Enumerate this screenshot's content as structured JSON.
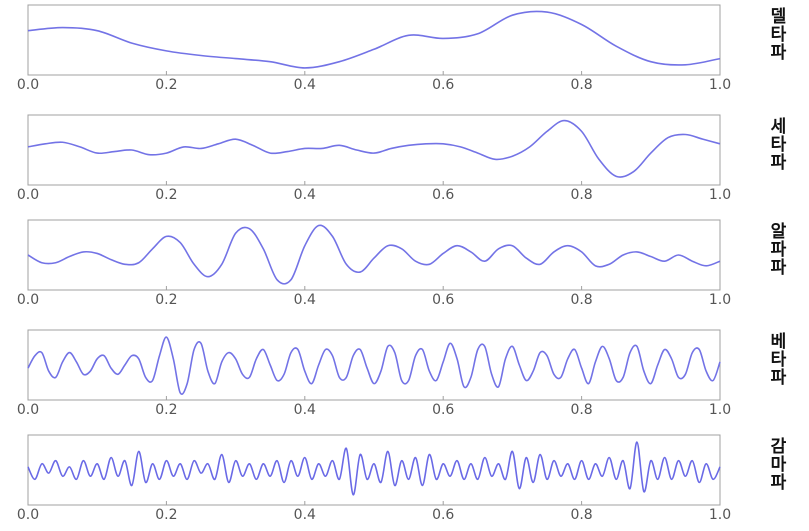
{
  "chart_data": [
    {
      "type": "line",
      "title": "델타파",
      "color": "#7373e6",
      "ylim": [
        -1,
        1
      ],
      "x": [
        0,
        0.05,
        0.1,
        0.15,
        0.2,
        0.25,
        0.3,
        0.35,
        0.4,
        0.45,
        0.5,
        0.55,
        0.6,
        0.65,
        0.7,
        0.75,
        0.8,
        0.85,
        0.9,
        0.95,
        1
      ],
      "values": [
        0.3,
        0.4,
        0.3,
        -0.1,
        -0.35,
        -0.5,
        -0.6,
        -0.7,
        -0.9,
        -0.7,
        -0.3,
        0.15,
        0.05,
        0.2,
        0.8,
        0.9,
        0.5,
        -0.2,
        -0.7,
        -0.8,
        -0.6
      ],
      "xlim": [
        0,
        1
      ],
      "xticks": [
        {
          "value": 0,
          "label": "0.0"
        },
        0.2,
        0.4,
        0.6,
        0.8,
        {
          "value": 1,
          "label": "1.0"
        }
      ]
    },
    {
      "type": "line",
      "title": "세타파",
      "color": "#7373e6",
      "ylim": [
        -1,
        1
      ],
      "x": [
        0,
        0.025,
        0.05,
        0.075,
        0.1,
        0.125,
        0.15,
        0.175,
        0.2,
        0.225,
        0.25,
        0.275,
        0.3,
        0.325,
        0.35,
        0.375,
        0.4,
        0.425,
        0.45,
        0.475,
        0.5,
        0.525,
        0.55,
        0.575,
        0.6,
        0.625,
        0.65,
        0.675,
        0.7,
        0.725,
        0.75,
        0.775,
        0.8,
        0.825,
        0.85,
        0.875,
        0.9,
        0.925,
        0.95,
        0.975,
        1
      ],
      "values": [
        0.1,
        0.2,
        0.25,
        0.1,
        -0.1,
        -0.05,
        0,
        -0.15,
        -0.1,
        0.1,
        0.05,
        0.2,
        0.35,
        0.15,
        -0.1,
        -0.05,
        0.05,
        0.05,
        0.15,
        0,
        -0.1,
        0.05,
        0.15,
        0.2,
        0.2,
        0.1,
        -0.1,
        -0.3,
        -0.2,
        0.1,
        0.6,
        0.95,
        0.6,
        -0.3,
        -0.85,
        -0.7,
        -0.1,
        0.4,
        0.5,
        0.35,
        0.2
      ],
      "xlim": [
        0,
        1
      ],
      "xticks": [
        {
          "value": 0,
          "label": "0.0"
        },
        0.2,
        0.4,
        0.6,
        0.8,
        {
          "value": 1,
          "label": "1.0"
        }
      ]
    },
    {
      "type": "line",
      "title": "알파파",
      "color": "#7373e6",
      "ylim": [
        -1,
        1
      ],
      "x": [
        0,
        0.02,
        0.04,
        0.06,
        0.08,
        0.1,
        0.12,
        0.14,
        0.16,
        0.18,
        0.2,
        0.22,
        0.24,
        0.26,
        0.28,
        0.3,
        0.32,
        0.34,
        0.36,
        0.38,
        0.4,
        0.42,
        0.44,
        0.46,
        0.48,
        0.5,
        0.52,
        0.54,
        0.56,
        0.58,
        0.6,
        0.62,
        0.64,
        0.66,
        0.68,
        0.7,
        0.72,
        0.74,
        0.76,
        0.78,
        0.8,
        0.82,
        0.84,
        0.86,
        0.88,
        0.9,
        0.92,
        0.94,
        0.96,
        0.98,
        1
      ],
      "values": [
        0,
        -0.25,
        -0.25,
        -0.05,
        0.1,
        0.05,
        -0.15,
        -0.3,
        -0.25,
        0.2,
        0.6,
        0.4,
        -0.3,
        -0.7,
        -0.3,
        0.7,
        0.85,
        0.2,
        -0.8,
        -0.8,
        0.3,
        0.95,
        0.6,
        -0.3,
        -0.55,
        -0.1,
        0.3,
        0.2,
        -0.2,
        -0.3,
        0.05,
        0.3,
        0.1,
        -0.2,
        0.2,
        0.3,
        -0.1,
        -0.3,
        0.1,
        0.3,
        0.1,
        -0.35,
        -0.3,
        0,
        0.1,
        -0.05,
        -0.2,
        0,
        -0.2,
        -0.35,
        -0.2
      ],
      "xlim": [
        0,
        1
      ],
      "xticks": [
        {
          "value": 0,
          "label": "0.0"
        },
        0.2,
        0.4,
        0.6,
        0.8,
        {
          "value": 1,
          "label": "1.0"
        }
      ]
    },
    {
      "type": "line",
      "title": "베타파",
      "color": "#7373e6",
      "ylim": [
        -1,
        1
      ],
      "x": [
        0,
        0.01,
        0.02,
        0.03,
        0.04,
        0.05,
        0.06,
        0.07,
        0.08,
        0.09,
        0.1,
        0.11,
        0.12,
        0.13,
        0.14,
        0.15,
        0.16,
        0.17,
        0.18,
        0.19,
        0.2,
        0.21,
        0.22,
        0.23,
        0.24,
        0.25,
        0.26,
        0.27,
        0.28,
        0.29,
        0.3,
        0.31,
        0.32,
        0.33,
        0.34,
        0.35,
        0.36,
        0.37,
        0.38,
        0.39,
        0.4,
        0.41,
        0.42,
        0.43,
        0.44,
        0.45,
        0.46,
        0.47,
        0.48,
        0.49,
        0.5,
        0.51,
        0.52,
        0.53,
        0.54,
        0.55,
        0.56,
        0.57,
        0.58,
        0.59,
        0.6,
        0.61,
        0.62,
        0.63,
        0.64,
        0.65,
        0.66,
        0.67,
        0.68,
        0.69,
        0.7,
        0.71,
        0.72,
        0.73,
        0.74,
        0.75,
        0.76,
        0.77,
        0.78,
        0.79,
        0.8,
        0.81,
        0.82,
        0.83,
        0.84,
        0.85,
        0.86,
        0.87,
        0.88,
        0.89,
        0.9,
        0.91,
        0.92,
        0.93,
        0.94,
        0.95,
        0.96,
        0.97,
        0.98,
        0.99,
        1
      ],
      "values": [
        -0.1,
        0.3,
        0.4,
        -0.2,
        -0.4,
        0.1,
        0.4,
        0.1,
        -0.3,
        -0.2,
        0.2,
        0.3,
        -0.1,
        -0.3,
        0,
        0.3,
        0.2,
        -0.4,
        -0.5,
        0.3,
        0.9,
        0.2,
        -0.9,
        -0.6,
        0.5,
        0.7,
        -0.2,
        -0.6,
        0.1,
        0.4,
        0.2,
        -0.3,
        -0.4,
        0.2,
        0.5,
        0,
        -0.5,
        -0.3,
        0.4,
        0.5,
        -0.2,
        -0.6,
        0,
        0.5,
        0.3,
        -0.4,
        -0.4,
        0.3,
        0.5,
        -0.1,
        -0.6,
        -0.2,
        0.6,
        0.4,
        -0.5,
        -0.5,
        0.3,
        0.5,
        -0.2,
        -0.5,
        0.1,
        0.7,
        0.2,
        -0.7,
        -0.4,
        0.5,
        0.6,
        -0.3,
        -0.7,
        0.2,
        0.6,
        0,
        -0.5,
        -0.2,
        0.4,
        0.3,
        -0.3,
        -0.4,
        0.2,
        0.5,
        -0.1,
        -0.6,
        0.1,
        0.6,
        0.2,
        -0.5,
        -0.4,
        0.4,
        0.6,
        -0.2,
        -0.6,
        0,
        0.5,
        0.2,
        -0.4,
        -0.3,
        0.4,
        0.5,
        -0.2,
        -0.5,
        0.1
      ],
      "xlim": [
        0,
        1
      ],
      "xticks": [
        {
          "value": 0,
          "label": "0.0"
        },
        0.2,
        0.4,
        0.6,
        0.8,
        {
          "value": 1,
          "label": "1.0"
        }
      ]
    },
    {
      "type": "line",
      "title": "감마파",
      "color": "#6a6ae6",
      "ylim": [
        -1,
        1
      ],
      "x": [
        0,
        0.01,
        0.02,
        0.03,
        0.04,
        0.05,
        0.06,
        0.07,
        0.08,
        0.09,
        0.1,
        0.11,
        0.12,
        0.13,
        0.14,
        0.15,
        0.16,
        0.17,
        0.18,
        0.19,
        0.2,
        0.21,
        0.22,
        0.23,
        0.24,
        0.25,
        0.26,
        0.27,
        0.28,
        0.29,
        0.3,
        0.31,
        0.32,
        0.33,
        0.34,
        0.35,
        0.36,
        0.37,
        0.38,
        0.39,
        0.4,
        0.41,
        0.42,
        0.43,
        0.44,
        0.45,
        0.46,
        0.47,
        0.48,
        0.49,
        0.5,
        0.51,
        0.52,
        0.53,
        0.54,
        0.55,
        0.56,
        0.57,
        0.58,
        0.59,
        0.6,
        0.61,
        0.62,
        0.63,
        0.64,
        0.65,
        0.66,
        0.67,
        0.68,
        0.69,
        0.7,
        0.71,
        0.72,
        0.73,
        0.74,
        0.75,
        0.76,
        0.77,
        0.78,
        0.79,
        0.8,
        0.81,
        0.82,
        0.83,
        0.84,
        0.85,
        0.86,
        0.87,
        0.88,
        0.89,
        0.9,
        0.91,
        0.92,
        0.93,
        0.94,
        0.95,
        0.96,
        0.97,
        0.98,
        0.99,
        1
      ],
      "values": [
        0.1,
        -0.3,
        0.2,
        -0.1,
        0.3,
        -0.2,
        0.1,
        -0.3,
        0.3,
        -0.2,
        0.2,
        -0.3,
        0.4,
        -0.2,
        0.3,
        -0.5,
        0.6,
        -0.4,
        0.2,
        -0.3,
        0.3,
        -0.2,
        0.2,
        -0.3,
        0.3,
        -0.1,
        0.2,
        -0.3,
        0.5,
        -0.4,
        0.3,
        -0.2,
        0.2,
        -0.3,
        0.2,
        -0.2,
        0.3,
        -0.4,
        0.3,
        -0.2,
        0.4,
        -0.3,
        0.2,
        -0.2,
        0.3,
        -0.3,
        0.7,
        -0.8,
        0.5,
        -0.3,
        0.2,
        -0.4,
        0.6,
        -0.5,
        0.3,
        -0.3,
        0.4,
        -0.5,
        0.5,
        -0.3,
        0.2,
        -0.2,
        0.3,
        -0.3,
        0.2,
        -0.3,
        0.4,
        -0.2,
        0.2,
        -0.3,
        0.6,
        -0.6,
        0.4,
        -0.4,
        0.5,
        -0.3,
        0.3,
        -0.2,
        0.2,
        -0.3,
        0.3,
        -0.3,
        0.2,
        -0.2,
        0.4,
        -0.3,
        0.3,
        -0.6,
        0.9,
        -0.7,
        0.3,
        -0.3,
        0.4,
        -0.3,
        0.3,
        -0.2,
        0.3,
        -0.4,
        0.2,
        -0.3,
        0.1
      ],
      "xlim": [
        0,
        1
      ],
      "xticks": [
        {
          "value": 0,
          "label": "0.0"
        },
        0.2,
        0.4,
        0.6,
        0.8,
        {
          "value": 1,
          "label": "1.0"
        }
      ]
    }
  ]
}
